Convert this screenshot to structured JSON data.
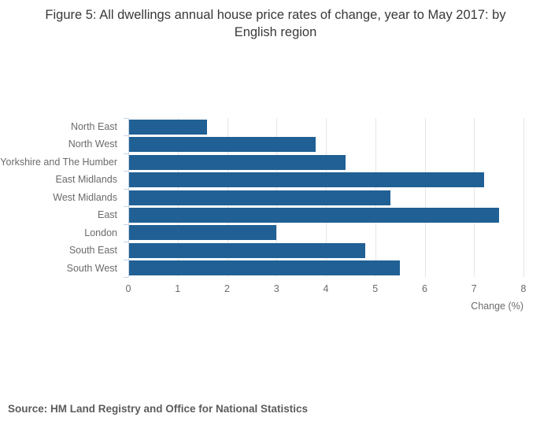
{
  "title": "Figure 5: All dwellings annual house price rates of change, year to May 2017: by English region",
  "source_note": "Source: HM Land Registry and Office for National Statistics",
  "chart_data": {
    "type": "bar",
    "orientation": "horizontal",
    "title": "Figure 5: All dwellings annual house price rates of change, year to May 2017: by English region",
    "categories": [
      "North East",
      "North West",
      "Yorkshire and The Humber",
      "East Midlands",
      "West Midlands",
      "East",
      "London",
      "South East",
      "South West"
    ],
    "values": [
      1.6,
      3.8,
      4.4,
      7.2,
      5.3,
      7.5,
      3.0,
      4.8,
      5.5
    ],
    "xlabel": "Change (%)",
    "ylabel": "",
    "xlim": [
      0,
      8
    ],
    "xticks": [
      0,
      1,
      2,
      3,
      4,
      5,
      6,
      7,
      8
    ],
    "grid": true,
    "legend": "none",
    "bar_color": "#206095",
    "gridline_color": "#e6e6e6",
    "axis_line_color": "#c4d5e6",
    "label_color": "#6b6b6b"
  }
}
